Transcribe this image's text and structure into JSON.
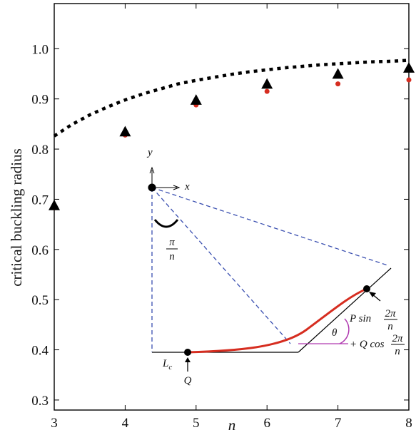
{
  "chart_data": {
    "type": "scatter",
    "xlabel": "n",
    "ylabel": "critical buckling radius",
    "xlim": [
      3,
      8
    ],
    "ylim": [
      0.28,
      1.09
    ],
    "x_ticks": [
      3,
      4,
      5,
      6,
      7,
      8
    ],
    "y_ticks": [
      0.3,
      0.4,
      0.5,
      0.6,
      0.7,
      0.8,
      0.9,
      1.0
    ],
    "x_tick_labels": [
      "3",
      "4",
      "5",
      "6",
      "7",
      "8"
    ],
    "y_tick_labels": [
      "0.3",
      "0.4",
      "0.5",
      "0.6",
      "0.7",
      "0.8",
      "0.9",
      "1.0"
    ],
    "grid": false,
    "series": [
      {
        "marker": "triangle",
        "color": "#000000",
        "x": [
          3,
          4,
          5,
          6,
          7,
          8
        ],
        "y": [
          0.688,
          0.835,
          0.898,
          0.93,
          0.95,
          0.962
        ]
      },
      {
        "marker": "circle",
        "color": "#d62d20",
        "x": [
          3,
          4,
          5,
          6,
          7,
          8
        ],
        "y": [
          0.683,
          0.828,
          0.888,
          0.915,
          0.93,
          0.938
        ]
      },
      {
        "marker": "dotted-line",
        "color": "#000000",
        "x": [
          3,
          3.25,
          3.5,
          3.75,
          4,
          4.25,
          4.5,
          4.75,
          5,
          5.25,
          5.5,
          5.75,
          6,
          6.25,
          6.5,
          6.75,
          7,
          7.25,
          7.5,
          7.75,
          8
        ],
        "y": [
          0.826,
          0.849,
          0.868,
          0.884,
          0.898,
          0.91,
          0.92,
          0.93,
          0.937,
          0.943,
          0.949,
          0.954,
          0.958,
          0.962,
          0.965,
          0.968,
          0.97,
          0.972,
          0.974,
          0.975,
          0.977
        ]
      }
    ],
    "inset": {
      "axis_x": "x",
      "axis_y": "y",
      "angle_numerator": "π",
      "angle_denominator": "n",
      "angle_theta": "θ",
      "length_label": "L",
      "length_sub": "c",
      "force_q": "Q",
      "force_p_prefix": "P sin",
      "force_q_prefix": "+ Q cos",
      "frac_num": "2π",
      "frac_den": "n"
    },
    "colors": {
      "dashed": "#3a4fb0",
      "rod": "#d62d20",
      "angle": "#b03ab0"
    }
  }
}
